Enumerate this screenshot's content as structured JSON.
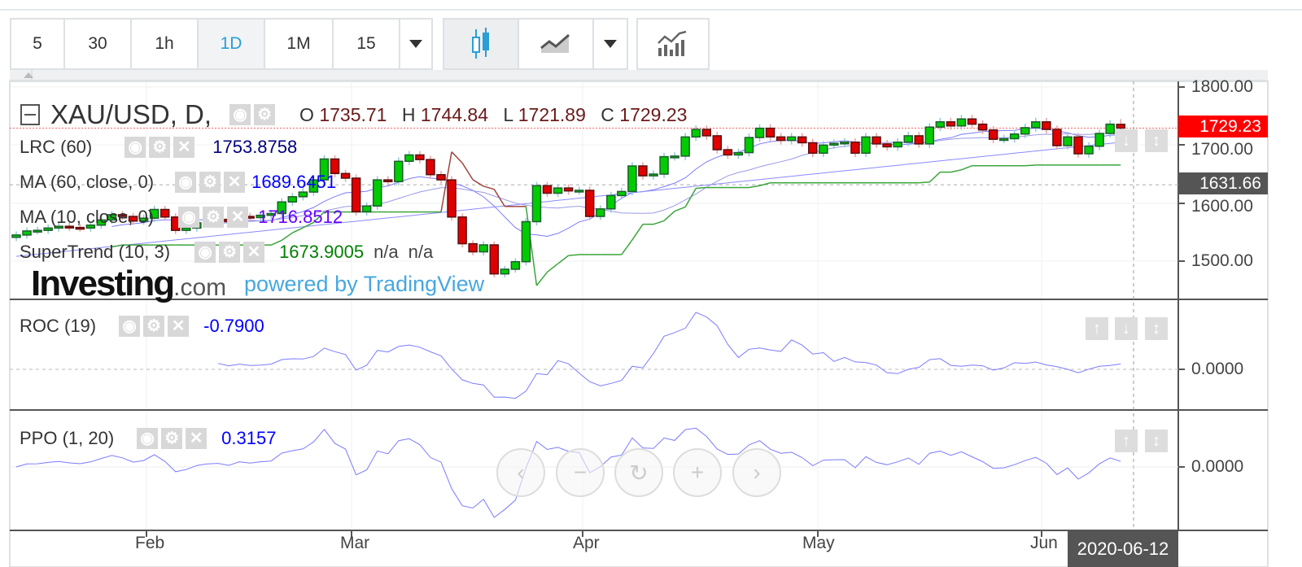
{
  "toolbar": {
    "intervals": [
      "5",
      "30",
      "1h",
      "1D",
      "1M",
      "15"
    ],
    "active_interval": "1D",
    "chart_type_icons": [
      "candlestick-icon",
      "line-chart-icon"
    ],
    "indicators_icon": "indicators-icon"
  },
  "legend": {
    "symbol": "XAU/USD, D,",
    "ohlc": {
      "o_label": "O",
      "o": "1735.71",
      "h_label": "H",
      "h": "1744.84",
      "l_label": "L",
      "l": "1721.89",
      "c_label": "C",
      "c": "1729.23"
    },
    "lrc": {
      "name": "LRC (60)",
      "value": "1753.8758"
    },
    "ma60": {
      "name": "MA (60, close, 0)",
      "value": "1689.6451"
    },
    "ma10": {
      "name": "MA (10, close, 0)",
      "value": "1716.8512"
    },
    "supertrend": {
      "name": "SuperTrend (10, 3)",
      "value": "1673.9005",
      "extra1": "n/a",
      "extra2": "n/a"
    },
    "roc": {
      "name": "ROC (19)",
      "value": "-0.7900"
    },
    "ppo": {
      "name": "PPO (1, 20)",
      "value": "0.3157"
    }
  },
  "watermark": {
    "brand": "Investing",
    "suffix": ".com",
    "powered": "powered by TradingView"
  },
  "price_axis": {
    "ticks": [
      "1800.00",
      "1700.00",
      "1600.00",
      "1500.00"
    ],
    "last_price": "1729.23",
    "crosshair_price": "1631.66"
  },
  "roc_axis": {
    "zero": "0.0000"
  },
  "ppo_axis": {
    "zero": "0.0000"
  },
  "time_axis": {
    "months": [
      "Feb",
      "Mar",
      "Apr",
      "May",
      "Jun"
    ],
    "crosshair_date": "2020-06-12"
  },
  "colors": {
    "up": "#00cc00",
    "down": "#e00000",
    "supertrend_up": "#3aa53a",
    "supertrend_down": "#a0463c",
    "ma": "#7b7bff",
    "accent": "#2a9fd6"
  },
  "chart_data": {
    "type": "candlestick",
    "symbol": "XAU/USD",
    "interval": "D",
    "closes": [
      1545,
      1552,
      1553,
      1557,
      1560,
      1558,
      1557,
      1562,
      1571,
      1580,
      1577,
      1569,
      1574,
      1589,
      1576,
      1553,
      1557,
      1566,
      1570,
      1572,
      1568,
      1577,
      1575,
      1579,
      1582,
      1602,
      1611,
      1619,
      1640,
      1676,
      1651,
      1643,
      1585,
      1595,
      1640,
      1637,
      1672,
      1683,
      1675,
      1649,
      1640,
      1576,
      1530,
      1516,
      1528,
      1478,
      1486,
      1499,
      1568,
      1630,
      1617,
      1626,
      1621,
      1622,
      1577,
      1590,
      1613,
      1620,
      1664,
      1647,
      1650,
      1680,
      1681,
      1714,
      1727,
      1716,
      1692,
      1683,
      1687,
      1713,
      1729,
      1714,
      1708,
      1714,
      1704,
      1686,
      1700,
      1703,
      1705,
      1686,
      1714,
      1702,
      1697,
      1705,
      1716,
      1702,
      1731,
      1740,
      1733,
      1745,
      1736,
      1726,
      1710,
      1711,
      1719,
      1730,
      1740,
      1727,
      1699,
      1714,
      1685,
      1698,
      1720,
      1736,
      1729
    ],
    "last_ohlc": {
      "open": 1735.71,
      "high": 1744.84,
      "low": 1721.89,
      "close": 1729.23
    },
    "ylim": [
      1460,
      1810
    ]
  }
}
